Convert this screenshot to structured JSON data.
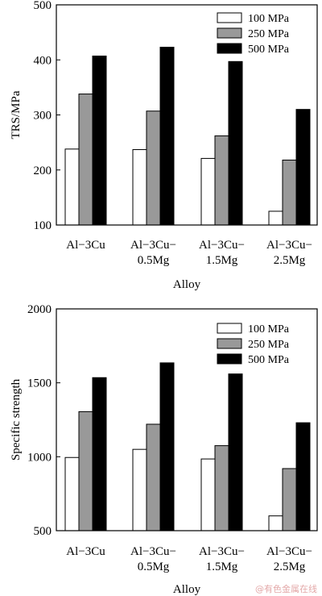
{
  "chart_data": [
    {
      "type": "bar",
      "categories": [
        "Al−3Cu",
        "Al−3Cu−\n0.5Mg",
        "Al−3Cu−\n1.5Mg",
        "Al−3Cu−\n2.5Mg"
      ],
      "series": [
        {
          "name": "100 MPa",
          "values": [
            238,
            237,
            221,
            125
          ],
          "color": "#ffffff"
        },
        {
          "name": "250 MPa",
          "values": [
            338,
            307,
            262,
            218
          ],
          "color": "#999999"
        },
        {
          "name": "500 MPa",
          "values": [
            407,
            423,
            397,
            310
          ],
          "color": "#000000"
        }
      ],
      "xlabel": "Alloy",
      "ylabel": "TRS/MPa",
      "ylim": [
        100,
        500
      ],
      "yticks": [
        100,
        200,
        300,
        400,
        500
      ],
      "legend": "top-right",
      "grid": false
    },
    {
      "type": "bar",
      "categories": [
        "Al−3Cu",
        "Al−3Cu−\n0.5Mg",
        "Al−3Cu−\n1.5Mg",
        "Al−3Cu−\n2.5Mg"
      ],
      "series": [
        {
          "name": "100 MPa",
          "values": [
            995,
            1050,
            985,
            600
          ],
          "color": "#ffffff"
        },
        {
          "name": "250 MPa",
          "values": [
            1305,
            1220,
            1075,
            920
          ],
          "color": "#999999"
        },
        {
          "name": "500 MPa",
          "values": [
            1535,
            1635,
            1560,
            1230
          ],
          "color": "#000000"
        }
      ],
      "xlabel": "Alloy",
      "ylabel": "Specific strength",
      "ylim": [
        500,
        2000
      ],
      "yticks": [
        500,
        1000,
        1500,
        2000
      ],
      "legend": "top-right",
      "grid": false
    }
  ],
  "watermark": "@有色金属在线"
}
